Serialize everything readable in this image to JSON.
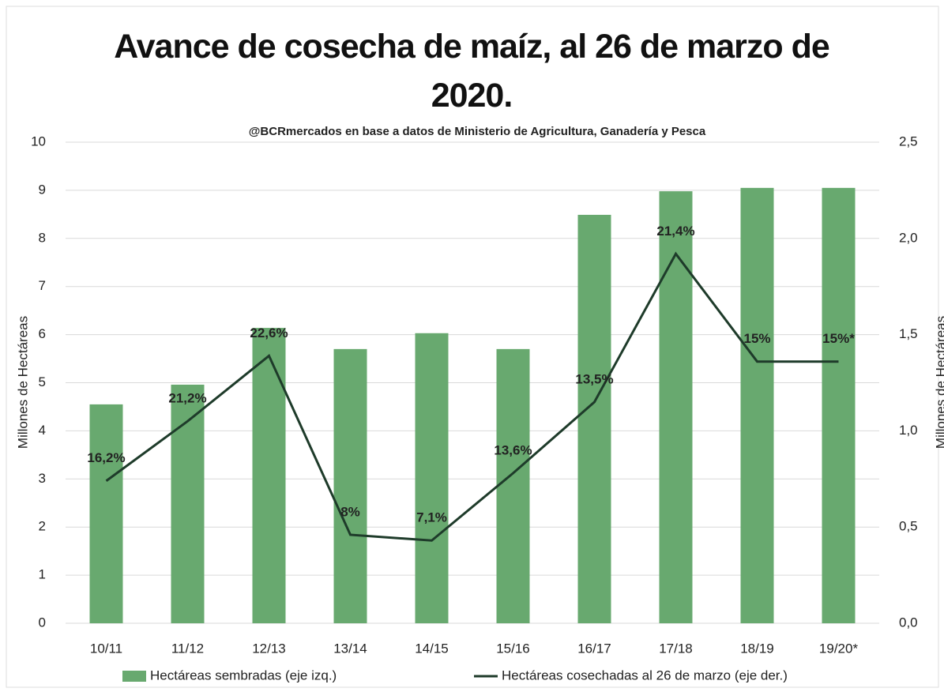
{
  "chart_data": {
    "type": "bar_line",
    "title": "Avance de cosecha de maíz, al 26 de marzo de 2020.",
    "subtitle": "@BCRmercados en base a datos de Ministerio de Agricultura, Ganadería y Pesca",
    "ylabel": "Millones de Hectáreas",
    "y2label": "Millones de Hectáreas",
    "categories": [
      "10/11",
      "11/12",
      "12/13",
      "13/14",
      "14/15",
      "15/16",
      "16/17",
      "17/18",
      "18/19",
      "19/20*"
    ],
    "series": [
      {
        "name": "Hectáreas sembradas (eje izq.)",
        "type": "bar",
        "color": "#68a96f",
        "values": [
          4.55,
          4.96,
          6.14,
          5.7,
          6.03,
          5.7,
          8.49,
          8.98,
          9.05,
          9.05
        ]
      },
      {
        "name": "Hectáreas cosechadas al 26 de marzo (eje der.)",
        "type": "line",
        "axis": "y2",
        "color": "#1e3b2a",
        "values": [
          0.74,
          1.05,
          1.39,
          0.46,
          0.43,
          0.78,
          1.15,
          1.92,
          1.36,
          1.36
        ],
        "point_labels": [
          "16,2%",
          "21,2%",
          "22,6%",
          "8%",
          "7,1%",
          "13,6%",
          "13,5%",
          "21,4%",
          "15%",
          "15%*"
        ]
      }
    ],
    "ylim": [
      0,
      10
    ],
    "yticks": [
      0,
      1,
      2,
      3,
      4,
      5,
      6,
      7,
      8,
      9,
      10
    ],
    "y2lim": [
      0,
      2.5
    ],
    "y2ticks": [
      {
        "value": 0,
        "label": "0,0"
      },
      {
        "value": 0.5,
        "label": "0,5"
      },
      {
        "value": 1,
        "label": "1,0"
      },
      {
        "value": 1.5,
        "label": "1,5"
      },
      {
        "value": 2,
        "label": "2,0"
      },
      {
        "value": 2.5,
        "label": "2,5"
      }
    ],
    "grid": true,
    "legend": "bottom"
  }
}
